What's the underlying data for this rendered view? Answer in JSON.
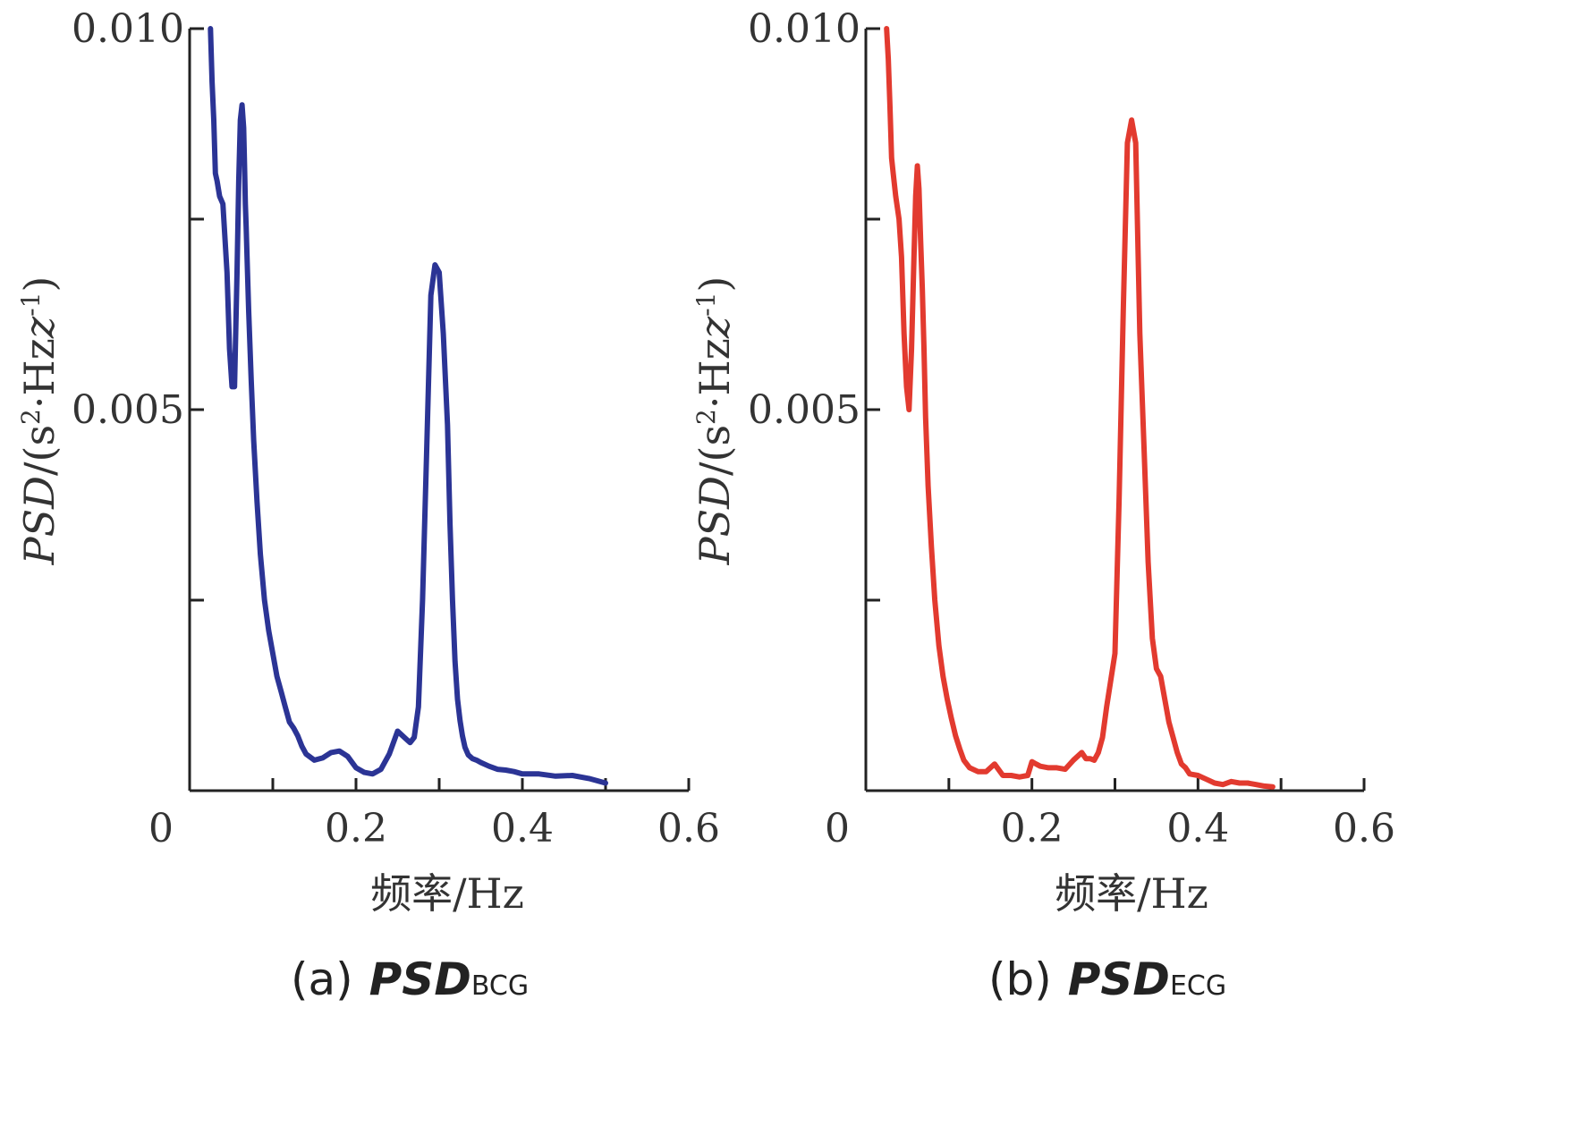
{
  "chart_data": [
    {
      "type": "line",
      "panel_label": "(a)",
      "caption_main": "PSD",
      "caption_sub": "BCG",
      "ylabel_main": "PSD",
      "ylabel_rest": "/(s",
      "ylabel_sup1": "2",
      "ylabel_mid": "·Hz",
      "ylabel_sup2": "-1",
      "ylabel_end": ")",
      "xlabel": "频率/Hz",
      "xlim": [
        0,
        0.6
      ],
      "ylim": [
        0,
        0.01
      ],
      "xticks": [
        0,
        0.2,
        0.4,
        0.6
      ],
      "xtick_labels": [
        "0",
        "0.2",
        "0.4",
        "0.6"
      ],
      "xticks_minor": [
        0.1,
        0.3,
        0.5
      ],
      "yticks": [
        0.005,
        0.01
      ],
      "ytick_labels": [
        "0.005",
        "0.010"
      ],
      "yticks_minor": [
        0.0025,
        0.0075
      ],
      "grid": false,
      "color": "#2b3495",
      "series": [
        {
          "x": [
            0.025,
            0.027,
            0.029,
            0.031,
            0.033,
            0.036,
            0.04,
            0.045,
            0.048,
            0.051,
            0.054,
            0.057,
            0.059,
            0.061,
            0.063,
            0.065,
            0.066,
            0.067,
            0.068,
            0.069,
            0.071,
            0.074,
            0.077,
            0.081,
            0.085,
            0.09,
            0.095,
            0.1,
            0.105,
            0.11,
            0.115,
            0.12,
            0.125,
            0.13,
            0.135,
            0.14,
            0.15,
            0.16,
            0.17,
            0.18,
            0.19,
            0.2,
            0.21,
            0.22,
            0.23,
            0.24,
            0.25,
            0.26,
            0.265,
            0.27,
            0.275,
            0.28,
            0.285,
            0.29,
            0.295,
            0.3,
            0.305,
            0.31,
            0.313,
            0.316,
            0.319,
            0.322,
            0.325,
            0.328,
            0.331,
            0.335,
            0.34,
            0.345,
            0.35,
            0.36,
            0.37,
            0.38,
            0.39,
            0.4,
            0.42,
            0.44,
            0.46,
            0.48,
            0.5
          ],
          "y": [
            0.01,
            0.0093,
            0.0088,
            0.0081,
            0.008,
            0.0078,
            0.0077,
            0.0068,
            0.0058,
            0.0053,
            0.0053,
            0.0068,
            0.008,
            0.0088,
            0.009,
            0.0087,
            0.0082,
            0.0077,
            0.0074,
            0.007,
            0.0063,
            0.0054,
            0.0046,
            0.0038,
            0.0031,
            0.0025,
            0.0021,
            0.0018,
            0.0015,
            0.0013,
            0.0011,
            0.0009,
            0.00082,
            0.00072,
            0.00058,
            0.00048,
            0.0004,
            0.00043,
            0.0005,
            0.00052,
            0.00045,
            0.0003,
            0.00024,
            0.00022,
            0.00028,
            0.00048,
            0.00078,
            0.00068,
            0.00063,
            0.0007,
            0.0011,
            0.0025,
            0.0045,
            0.0065,
            0.0069,
            0.0068,
            0.006,
            0.0048,
            0.0035,
            0.0025,
            0.0017,
            0.0012,
            0.00092,
            0.00072,
            0.00057,
            0.00047,
            0.00042,
            0.0004,
            0.00037,
            0.00032,
            0.00028,
            0.00027,
            0.00025,
            0.00022,
            0.00022,
            0.00019,
            0.0002,
            0.00016,
            0.0001
          ]
        }
      ]
    },
    {
      "type": "line",
      "panel_label": "(b)",
      "caption_main": "PSD",
      "caption_sub": "ECG",
      "ylabel_main": "PSD",
      "ylabel_rest": "/(s",
      "ylabel_sup1": "2",
      "ylabel_mid": "·Hz",
      "ylabel_sup2": "-1",
      "ylabel_end": ")",
      "xlabel": "频率/Hz",
      "xlim": [
        0,
        0.6
      ],
      "ylim": [
        0,
        0.01
      ],
      "xticks": [
        0,
        0.2,
        0.4,
        0.6
      ],
      "xtick_labels": [
        "0",
        "0.2",
        "0.4",
        "0.6"
      ],
      "xticks_minor": [
        0.1,
        0.3,
        0.5
      ],
      "yticks": [
        0.005,
        0.01
      ],
      "ytick_labels": [
        "0.005",
        "0.010"
      ],
      "yticks_minor": [
        0.0025,
        0.0075
      ],
      "grid": false,
      "color": "#e23a2f",
      "series": [
        {
          "x": [
            0.025,
            0.027,
            0.029,
            0.031,
            0.033,
            0.036,
            0.04,
            0.043,
            0.046,
            0.049,
            0.052,
            0.055,
            0.058,
            0.06,
            0.062,
            0.064,
            0.066,
            0.068,
            0.07,
            0.072,
            0.075,
            0.079,
            0.083,
            0.088,
            0.093,
            0.098,
            0.103,
            0.108,
            0.113,
            0.118,
            0.125,
            0.135,
            0.145,
            0.155,
            0.165,
            0.175,
            0.185,
            0.195,
            0.2,
            0.205,
            0.21,
            0.22,
            0.23,
            0.24,
            0.25,
            0.26,
            0.265,
            0.27,
            0.275,
            0.28,
            0.285,
            0.29,
            0.3,
            0.305,
            0.31,
            0.315,
            0.32,
            0.325,
            0.33,
            0.335,
            0.34,
            0.345,
            0.35,
            0.355,
            0.36,
            0.365,
            0.37,
            0.375,
            0.38,
            0.385,
            0.39,
            0.4,
            0.41,
            0.42,
            0.43,
            0.44,
            0.45,
            0.46,
            0.47,
            0.48,
            0.49
          ],
          "y": [
            0.01,
            0.0096,
            0.009,
            0.0083,
            0.0081,
            0.0078,
            0.0075,
            0.007,
            0.006,
            0.0053,
            0.005,
            0.0058,
            0.007,
            0.0078,
            0.0082,
            0.0079,
            0.0072,
            0.0066,
            0.0058,
            0.0049,
            0.004,
            0.0032,
            0.0025,
            0.0019,
            0.0015,
            0.0012,
            0.00095,
            0.00072,
            0.00055,
            0.0004,
            0.0003,
            0.00025,
            0.00025,
            0.00035,
            0.0002,
            0.0002,
            0.00018,
            0.0002,
            0.00038,
            0.00035,
            0.00032,
            0.0003,
            0.0003,
            0.00028,
            0.0004,
            0.0005,
            0.00042,
            0.00042,
            0.0004,
            0.0005,
            0.0007,
            0.0011,
            0.0018,
            0.0038,
            0.0063,
            0.0085,
            0.0088,
            0.0085,
            0.006,
            0.0045,
            0.003,
            0.002,
            0.0016,
            0.0015,
            0.0012,
            0.0009,
            0.0007,
            0.0005,
            0.00035,
            0.0003,
            0.00022,
            0.0002,
            0.00015,
            0.0001,
            8e-05,
            0.00012,
            0.0001,
            0.0001,
            8e-05,
            6e-05,
            5e-05
          ]
        }
      ]
    }
  ]
}
